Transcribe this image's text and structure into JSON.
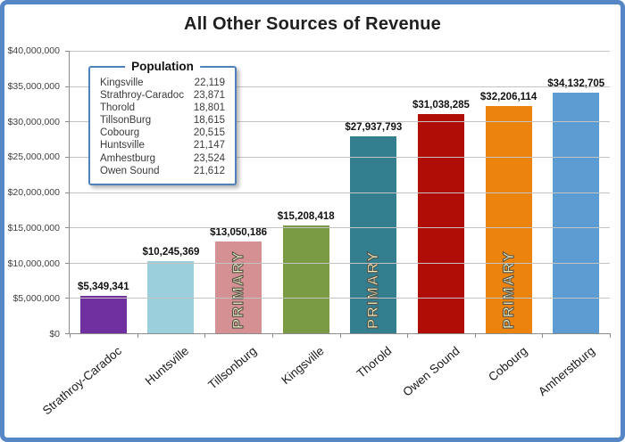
{
  "colors": {
    "frame_border": "#5586C5",
    "grid": "#C3C3C3",
    "axis": "#8C8C8C",
    "primary_text_fill": "#F2F0C2",
    "primary_text_outline": "#55544A"
  },
  "chart_data": {
    "type": "bar",
    "title": "All Other Sources of Revenue",
    "categories": [
      "Strathroy-Caradoc",
      "Huntsville",
      "Tillsonburg",
      "Kingsville",
      "Thorold",
      "Owen Sound",
      "Cobourg",
      "Amherstburg"
    ],
    "values": [
      5349341,
      10245369,
      13050186,
      15208418,
      27937793,
      31038285,
      32206114,
      34132705
    ],
    "value_labels": [
      "$5,349,341",
      "$10,245,369",
      "$13,050,186",
      "$15,208,418",
      "$27,937,793",
      "$31,038,285",
      "$32,206,114",
      "$34,132,705"
    ],
    "bar_colors": [
      "#7030A0",
      "#9CCFDC",
      "#D49092",
      "#7A9A43",
      "#337E8F",
      "#B00D06",
      "#EC830D",
      "#5D9BD3"
    ],
    "primary_bars": [
      false,
      false,
      true,
      false,
      true,
      false,
      true,
      false
    ],
    "primary_label": "PRIMARY",
    "xlabel": "",
    "ylabel": "",
    "ylim": [
      0,
      40000000
    ],
    "y_tick_interval": 5000000,
    "y_tick_labels": [
      "$40,000,000",
      "$35,000,000",
      "$30,000,000",
      "$25,000,000",
      "$20,000,000",
      "$15,000,000",
      "$10,000,000",
      "$5,000,000",
      "$0"
    ],
    "grid": true,
    "legend": {
      "title": "Population",
      "position": "upper-left",
      "entries": [
        {
          "name": "Kingsville",
          "value": "22,119"
        },
        {
          "name": "Strathroy-Caradoc",
          "value": "23,871"
        },
        {
          "name": "Thorold",
          "value": "18,801"
        },
        {
          "name": "TillsonBurg",
          "value": "18,615"
        },
        {
          "name": "Cobourg",
          "value": "20,515"
        },
        {
          "name": "Huntsville",
          "value": "21,147"
        },
        {
          "name": "Amhestburg",
          "value": "23,524"
        },
        {
          "name": "Owen Sound",
          "value": "21,612"
        }
      ]
    }
  }
}
